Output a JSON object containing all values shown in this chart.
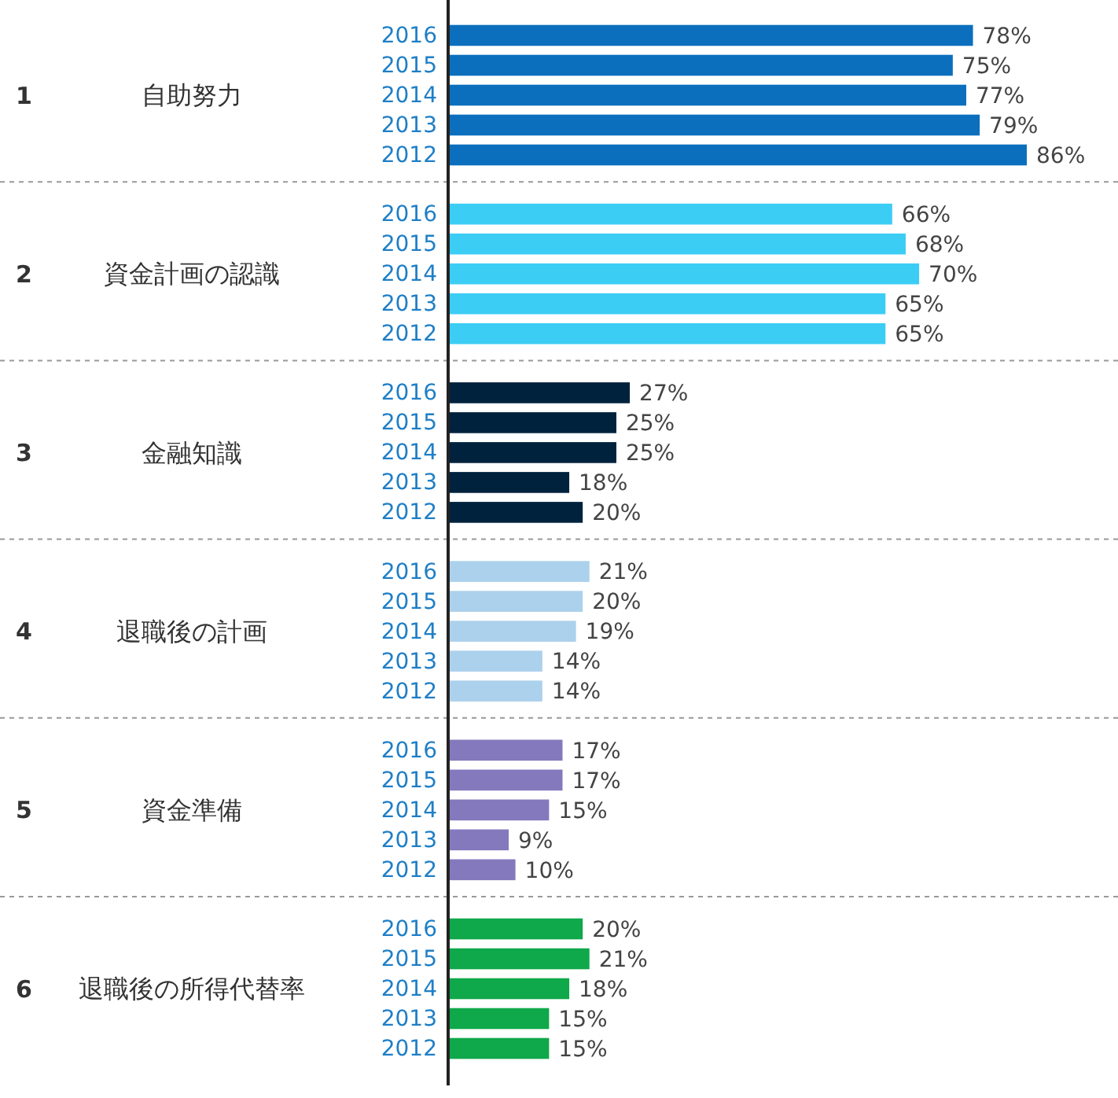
{
  "chart_data": [
    {
      "type": "bar",
      "orientation": "horizontal",
      "title": "自助努力",
      "annotations": [
        "1"
      ],
      "categories": [
        "2016",
        "2015",
        "2014",
        "2013",
        "2012"
      ],
      "values": [
        78,
        75,
        77,
        79,
        86
      ],
      "value_labels": [
        "78%",
        "75%",
        "77%",
        "79%",
        "86%"
      ],
      "color": "#0b6fbd"
    },
    {
      "type": "bar",
      "orientation": "horizontal",
      "title": "資金計画の認識",
      "annotations": [
        "2"
      ],
      "categories": [
        "2016",
        "2015",
        "2014",
        "2013",
        "2012"
      ],
      "values": [
        66,
        68,
        70,
        65,
        65
      ],
      "value_labels": [
        "66%",
        "68%",
        "70%",
        "65%",
        "65%"
      ],
      "color": "#3ccdf5"
    },
    {
      "type": "bar",
      "orientation": "horizontal",
      "title": "金融知識",
      "annotations": [
        "3"
      ],
      "categories": [
        "2016",
        "2015",
        "2014",
        "2013",
        "2012"
      ],
      "values": [
        27,
        25,
        25,
        18,
        20
      ],
      "value_labels": [
        "27%",
        "25%",
        "25%",
        "18%",
        "20%"
      ],
      "color": "#00223d"
    },
    {
      "type": "bar",
      "orientation": "horizontal",
      "title": "退職後の計画",
      "annotations": [
        "4"
      ],
      "categories": [
        "2016",
        "2015",
        "2014",
        "2013",
        "2012"
      ],
      "values": [
        21,
        20,
        19,
        14,
        14
      ],
      "value_labels": [
        "21%",
        "20%",
        "19%",
        "14%",
        "14%"
      ],
      "color": "#acd1ec"
    },
    {
      "type": "bar",
      "orientation": "horizontal",
      "title": "資金準備",
      "annotations": [
        "5"
      ],
      "categories": [
        "2016",
        "2015",
        "2014",
        "2013",
        "2012"
      ],
      "values": [
        17,
        17,
        15,
        9,
        10
      ],
      "value_labels": [
        "17%",
        "17%",
        "15%",
        "9%",
        "10%"
      ],
      "color": "#8479bd"
    },
    {
      "type": "bar",
      "orientation": "horizontal",
      "title": "退職後の所得代替率",
      "annotations": [
        "6"
      ],
      "categories": [
        "2016",
        "2015",
        "2014",
        "2013",
        "2012"
      ],
      "values": [
        20,
        21,
        18,
        15,
        15
      ],
      "value_labels": [
        "20%",
        "21%",
        "18%",
        "15%",
        "15%"
      ],
      "color": "#0fa84a"
    }
  ]
}
